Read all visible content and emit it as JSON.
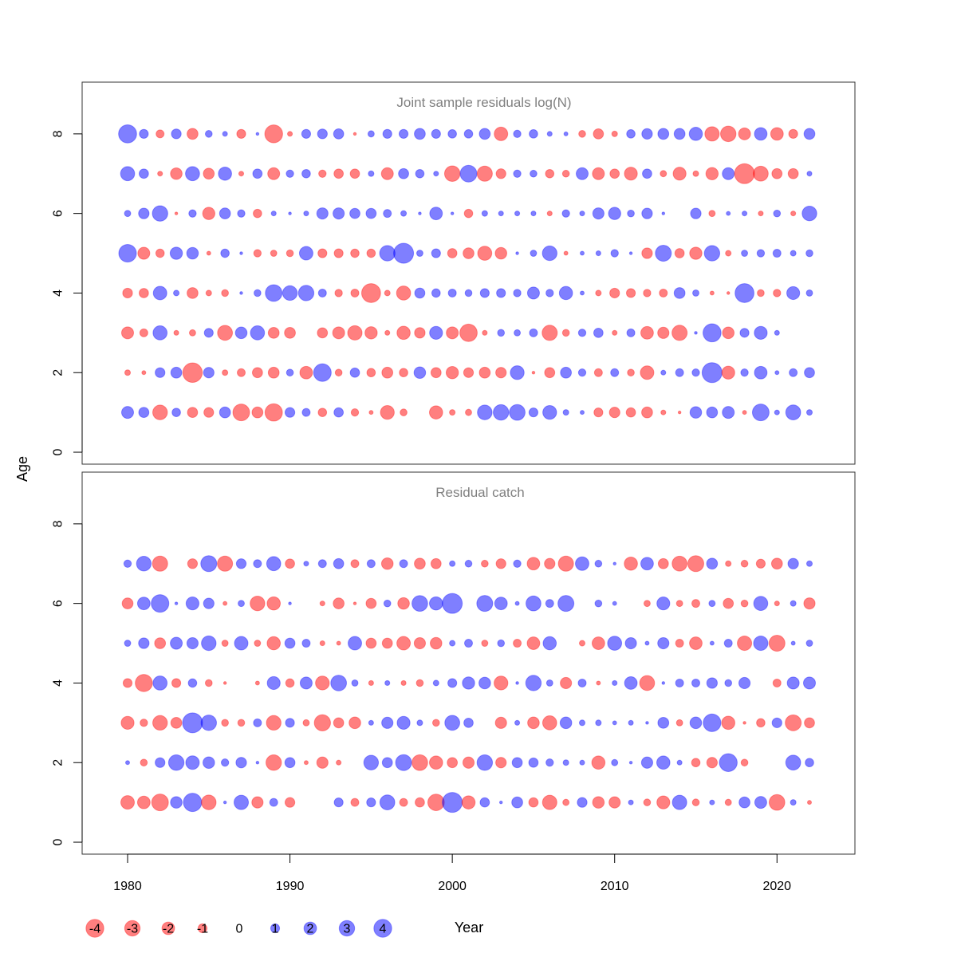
{
  "chart_data": {
    "type": "bubble",
    "x_label": "Year",
    "y_label": "Age",
    "x_ticks": [
      1980,
      1990,
      2000,
      2010,
      2020
    ],
    "x_range": [
      1977.2,
      2024.8
    ],
    "y_range": [
      -0.3,
      9.3
    ],
    "y_ticks": [
      0,
      2,
      4,
      6,
      8
    ],
    "colors": {
      "positive": "#0000ff",
      "negative": "#ff0000",
      "axis": "#000000",
      "panel_title": "#808080"
    },
    "legend": {
      "values": [
        -4,
        -3,
        -2,
        -1,
        0,
        1,
        2,
        3,
        4
      ],
      "labels": [
        "-4",
        "-3",
        "-2",
        "-1",
        "0",
        "1",
        "2",
        "3",
        "4"
      ]
    },
    "panels": [
      {
        "title": "Joint sample residuals log(N)",
        "years_start": 1980,
        "ages": [
          {
            "age": 8,
            "residuals": [
              4.1,
              1.0,
              -0.8,
              1.2,
              -1.5,
              0.6,
              0.3,
              -1.0,
              0.1,
              -4.0,
              -0.3,
              1.0,
              1.2,
              1.3,
              -0.1,
              0.5,
              1.0,
              1.0,
              1.5,
              1.0,
              0.9,
              0.9,
              1.5,
              -2.3,
              0.7,
              0.9,
              0.3,
              0.2,
              -0.6,
              -1.3,
              -0.4,
              0.9,
              1.4,
              1.5,
              1.5,
              2.2,
              -2.6,
              -3.0,
              -1.8,
              2.0,
              -2.0,
              -1.0,
              1.5
            ]
          },
          {
            "age": 7,
            "residuals": [
              2.5,
              1.1,
              -0.3,
              -1.7,
              2.5,
              -1.5,
              2.2,
              -0.3,
              1.1,
              -1.8,
              0.7,
              0.9,
              -0.7,
              -1.1,
              -1.1,
              0.4,
              -1.8,
              1.3,
              0.9,
              0.3,
              -3.0,
              3.5,
              -2.9,
              -1.2,
              0.7,
              0.6,
              -0.9,
              -0.6,
              1.8,
              -1.8,
              -1.1,
              -2.1,
              1.1,
              -0.5,
              -2.1,
              -0.4,
              -1.9,
              1.8,
              -5.0,
              -2.8,
              -1.3,
              -1.3,
              0.3
            ]
          },
          {
            "age": 6,
            "residuals": [
              0.5,
              1.4,
              3.0,
              -0.1,
              0.7,
              -1.9,
              1.5,
              0.7,
              -0.9,
              0.3,
              0.1,
              0.3,
              1.6,
              1.6,
              1.3,
              1.3,
              0.8,
              0.4,
              0.1,
              2.0,
              0.1,
              -0.9,
              0.4,
              0.3,
              0.3,
              0.3,
              -0.3,
              0.7,
              0.3,
              1.6,
              1.9,
              0.6,
              1.4,
              0.1,
              0.0,
              1.4,
              -0.5,
              0.2,
              0.3,
              -0.3,
              0.6,
              -0.3,
              2.7
            ]
          },
          {
            "age": 5,
            "residuals": [
              3.9,
              -1.8,
              -0.9,
              1.9,
              1.7,
              -0.2,
              0.9,
              0.1,
              -0.7,
              -0.5,
              -0.6,
              2.3,
              -1.0,
              -1.0,
              -0.9,
              -0.9,
              3.0,
              5.0,
              0.5,
              1.0,
              -1.1,
              -1.5,
              -2.5,
              -1.7,
              0.1,
              0.5,
              2.7,
              -0.2,
              0.2,
              0.3,
              0.7,
              0.1,
              -1.4,
              3.2,
              -1.1,
              -1.9,
              3.0,
              -0.4,
              0.5,
              0.7,
              0.8,
              0.4,
              0.6
            ]
          },
          {
            "age": 4,
            "residuals": [
              -1.2,
              -1.1,
              2.3,
              0.4,
              -1.5,
              -0.4,
              -0.6,
              0.1,
              0.6,
              3.5,
              2.7,
              3.0,
              0.8,
              -0.7,
              -0.8,
              -4.5,
              -0.4,
              -2.5,
              1.3,
              0.9,
              0.8,
              0.6,
              1.0,
              1.0,
              0.7,
              1.8,
              0.7,
              2.2,
              0.2,
              -0.4,
              -1.2,
              -1.0,
              -0.7,
              -0.8,
              1.5,
              0.5,
              -0.2,
              -0.1,
              4.5,
              -0.6,
              -0.7,
              2.1,
              0.5
            ]
          },
          {
            "age": 3,
            "residuals": [
              -1.8,
              -0.8,
              2.5,
              -0.3,
              -0.5,
              1.0,
              -2.8,
              1.7,
              2.5,
              -1.5,
              -1.5,
              0.0,
              -1.3,
              -1.8,
              -2.6,
              -1.9,
              -0.3,
              -2.2,
              -1.4,
              2.1,
              -1.8,
              -3.8,
              -0.3,
              0.6,
              0.5,
              0.8,
              -2.9,
              -0.6,
              0.7,
              1.1,
              -0.3,
              0.8,
              -2.0,
              -1.6,
              -2.9,
              0.1,
              4.1,
              -1.7,
              1.0,
              2.1,
              0.3
            ]
          },
          {
            "age": 2,
            "residuals": [
              -0.4,
              -0.2,
              1.2,
              1.5,
              -4.8,
              1.4,
              -0.4,
              -0.8,
              -1.3,
              -1.5,
              0.6,
              -2.0,
              3.9,
              -0.6,
              1.1,
              -0.9,
              -1.5,
              -0.9,
              1.7,
              -1.3,
              -1.9,
              -1.2,
              -1.5,
              -1.4,
              2.4,
              -0.1,
              -1.3,
              1.5,
              0.7,
              -0.8,
              0.8,
              -0.6,
              -2.3,
              0.3,
              0.8,
              0.7,
              5.0,
              -2.1,
              0.7,
              2.0,
              0.2,
              0.8,
              1.3
            ]
          },
          {
            "age": 1,
            "residuals": [
              1.8,
              1.3,
              -2.7,
              0.9,
              -1.3,
              -1.2,
              1.5,
              -3.5,
              -1.5,
              -3.8,
              1.2,
              0.8,
              -0.9,
              1.1,
              -0.7,
              -0.2,
              -2.4,
              -0.6,
              0.0,
              -2.2,
              -0.4,
              -0.5,
              2.7,
              3.0,
              3.1,
              1.0,
              2.4,
              0.4,
              0.2,
              -1.0,
              -1.4,
              -1.1,
              -1.5,
              -0.3,
              -0.1,
              1.7,
              1.5,
              1.8,
              -0.2,
              3.5,
              0.3,
              2.8,
              0.4
            ]
          }
        ]
      },
      {
        "title": "Residual catch",
        "years_start": 1980,
        "ages": [
          {
            "age": 7,
            "residuals": [
              0.7,
              2.7,
              -2.9,
              0.0,
              -1.2,
              3.2,
              -2.9,
              1.2,
              0.8,
              2.5,
              -1.1,
              0.3,
              0.8,
              1.3,
              -0.8,
              0.8,
              -1.7,
              0.8,
              -1.5,
              -1.3,
              0.4,
              0.6,
              -0.6,
              -1.2,
              0.7,
              -2.0,
              -1.4,
              -2.9,
              2.3,
              0.6,
              0.1,
              -2.2,
              2.0,
              -1.3,
              -2.8,
              -3.2,
              1.5,
              -0.4,
              -0.6,
              -1.0,
              -1.5,
              1.4,
              0.4
            ]
          },
          {
            "age": 6,
            "residuals": [
              -1.5,
              2.0,
              3.9,
              0.1,
              2.1,
              1.4,
              -0.2,
              0.5,
              -2.7,
              -2.2,
              0.1,
              0.0,
              -0.3,
              -1.5,
              -0.1,
              -1.3,
              0.6,
              -1.7,
              3.1,
              2.2,
              5.0,
              0.0,
              3.2,
              2.0,
              0.2,
              2.8,
              0.8,
              3.2,
              0.0,
              0.6,
              0.2,
              0.0,
              -0.5,
              2.1,
              -0.5,
              -0.8,
              0.5,
              -1.3,
              -0.6,
              2.5,
              -0.3,
              0.4,
              -1.6
            ]
          },
          {
            "age": 5,
            "residuals": [
              0.5,
              1.4,
              -1.5,
              1.8,
              1.6,
              2.7,
              -0.5,
              2.3,
              -0.5,
              -2.2,
              1.3,
              0.8,
              -0.3,
              -0.2,
              2.3,
              -1.3,
              -1.3,
              -2.3,
              -1.6,
              -1.7,
              0.4,
              0.8,
              -0.5,
              0.6,
              -0.8,
              -2.0,
              2.2,
              0.0,
              -0.4,
              -2.0,
              2.5,
              1.6,
              0.2,
              1.6,
              -0.8,
              -2.0,
              0.2,
              0.8,
              -2.6,
              2.6,
              -3.2,
              0.2,
              0.5
            ]
          },
          {
            "age": 4,
            "residuals": [
              -1.0,
              -3.7,
              2.5,
              -1.0,
              0.9,
              -0.6,
              -0.1,
              0.0,
              -0.2,
              2.1,
              -0.9,
              1.8,
              -2.4,
              3.1,
              0.5,
              -0.3,
              0.3,
              -0.3,
              -0.6,
              0.4,
              1.0,
              1.9,
              1.7,
              -2.4,
              0.1,
              3.0,
              0.5,
              -1.6,
              0.8,
              -0.2,
              0.3,
              2.0,
              -2.8,
              0.1,
              0.8,
              0.8,
              1.4,
              0.6,
              1.6,
              0.0,
              -0.8,
              1.8,
              1.8
            ]
          },
          {
            "age": 3,
            "residuals": [
              -2.1,
              -0.7,
              -2.7,
              -1.5,
              5.0,
              3.0,
              -0.6,
              -0.6,
              0.8,
              -2.7,
              1.0,
              -0.5,
              -3.3,
              -1.3,
              -1.7,
              0.3,
              1.6,
              2.1,
              0.4,
              -0.6,
              2.8,
              1.1,
              0.0,
              -1.6,
              0.3,
              -1.7,
              -2.5,
              1.7,
              0.4,
              0.4,
              0.2,
              0.3,
              0.1,
              1.5,
              -0.5,
              1.7,
              3.9,
              -2.2,
              -0.1,
              -0.9,
              1.2,
              -3.2,
              -1.3
            ]
          },
          {
            "age": 2,
            "residuals": [
              0.2,
              -0.6,
              1.2,
              3.0,
              2.3,
              1.7,
              0.7,
              1.4,
              0.1,
              -3.0,
              1.3,
              -0.2,
              -1.6,
              -0.3,
              0.0,
              2.7,
              1.3,
              3.2,
              -3.1,
              -2.2,
              -1.3,
              -1.6,
              3.0,
              -1.4,
              1.3,
              1.1,
              0.7,
              0.4,
              0.3,
              -2.2,
              0.5,
              0.1,
              1.6,
              2.2,
              0.3,
              -0.9,
              -1.4,
              4.0,
              -0.6,
              0.0,
              0.0,
              2.8,
              0.9
            ]
          },
          {
            "age": 1,
            "residuals": [
              -2.3,
              -2.0,
              -3.5,
              1.7,
              4.2,
              -2.7,
              0.1,
              2.6,
              -1.6,
              0.8,
              -1.2,
              0.0,
              0.0,
              1.0,
              -0.8,
              1.0,
              2.8,
              -0.8,
              -1.1,
              -3.4,
              5.0,
              -2.2,
              1.1,
              0.1,
              1.5,
              -1.1,
              -2.6,
              -0.5,
              1.2,
              -1.7,
              -1.6,
              0.3,
              -0.6,
              -2.1,
              2.6,
              -0.6,
              0.3,
              -0.5,
              1.5,
              1.8,
              -3.1,
              0.4,
              -0.2
            ]
          }
        ]
      }
    ]
  }
}
